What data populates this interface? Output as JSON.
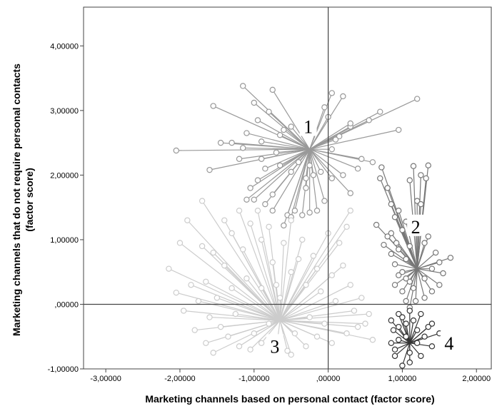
{
  "chart_data": {
    "type": "scatter",
    "title": "",
    "xlabel": "Marketing channels based on personal contact (factor score)",
    "ylabel_line1": "Marketing channels that do not require personal contacts",
    "ylabel_line2": "(factor score)",
    "xlim": [
      -3.3,
      2.2
    ],
    "ylim": [
      -1.0,
      4.6
    ],
    "x_ticks": [
      {
        "value": -3,
        "label": "-3,00000"
      },
      {
        "value": -2,
        "label": "-2,00000"
      },
      {
        "value": -1,
        "label": "-1,00000"
      },
      {
        "value": 0,
        "label": ",00000"
      },
      {
        "value": 1,
        "label": "1,00000"
      },
      {
        "value": 2,
        "label": "2,00000"
      }
    ],
    "y_ticks": [
      {
        "value": -1,
        "label": "-1,00000"
      },
      {
        "value": 0,
        "label": ",00000"
      },
      {
        "value": 1,
        "label": "1,00000"
      },
      {
        "value": 2,
        "label": "2,00000"
      },
      {
        "value": 3,
        "label": "3,00000"
      },
      {
        "value": 4,
        "label": "4,00000"
      }
    ],
    "reference_lines": {
      "x": 0,
      "y": 0
    },
    "grid": false,
    "series": [
      {
        "cluster": "1",
        "color": "#999999",
        "centroid": [
          -0.25,
          2.4
        ],
        "points": [
          [
            -1.15,
            3.38
          ],
          [
            -0.75,
            3.32
          ],
          [
            -1.55,
            3.07
          ],
          [
            -1.0,
            3.12
          ],
          [
            -0.8,
            2.98
          ],
          [
            -0.95,
            2.85
          ],
          [
            -0.6,
            2.7
          ],
          [
            -1.1,
            2.65
          ],
          [
            -1.45,
            2.5
          ],
          [
            -2.05,
            2.38
          ],
          [
            -1.6,
            2.08
          ],
          [
            -1.2,
            2.25
          ],
          [
            -0.9,
            2.52
          ],
          [
            -0.7,
            2.35
          ],
          [
            -0.85,
            2.1
          ],
          [
            -0.95,
            1.92
          ],
          [
            -1.05,
            1.8
          ],
          [
            -1.1,
            1.62
          ],
          [
            -1.0,
            1.62
          ],
          [
            -0.75,
            1.7
          ],
          [
            -0.85,
            1.55
          ],
          [
            -0.75,
            1.45
          ],
          [
            -0.55,
            1.38
          ],
          [
            -0.6,
            1.22
          ],
          [
            -0.5,
            1.35
          ],
          [
            -0.45,
            1.45
          ],
          [
            -0.35,
            1.38
          ],
          [
            -0.25,
            1.42
          ],
          [
            -0.15,
            1.45
          ],
          [
            -0.05,
            1.6
          ],
          [
            -0.3,
            1.8
          ],
          [
            -0.1,
            2.05
          ],
          [
            0.05,
            1.95
          ],
          [
            0.3,
            1.72
          ],
          [
            0.2,
            2.0
          ],
          [
            0.4,
            2.1
          ],
          [
            0.6,
            2.2
          ],
          [
            0.05,
            2.4
          ],
          [
            0.15,
            2.6
          ],
          [
            0.3,
            2.75
          ],
          [
            0.55,
            2.85
          ],
          [
            0.7,
            2.98
          ],
          [
            0.95,
            2.7
          ],
          [
            1.2,
            3.18
          ],
          [
            0.2,
            3.22
          ],
          [
            0.05,
            3.27
          ],
          [
            -0.05,
            3.05
          ],
          [
            0.0,
            2.9
          ],
          [
            0.3,
            2.8
          ],
          [
            -0.5,
            2.75
          ],
          [
            -0.65,
            2.62
          ],
          [
            -0.5,
            2.05
          ],
          [
            -0.4,
            2.2
          ],
          [
            -0.3,
            1.95
          ],
          [
            -0.25,
            2.15
          ],
          [
            -1.3,
            2.5
          ],
          [
            -1.15,
            2.42
          ],
          [
            -0.9,
            2.25
          ],
          [
            -0.65,
            2.15
          ],
          [
            0.45,
            2.25
          ],
          [
            0.1,
            2.55
          ],
          [
            -0.2,
            2.0
          ]
        ]
      },
      {
        "cluster": "2",
        "color": "#777777",
        "centroid": [
          1.2,
          0.55
        ],
        "points": [
          [
            0.72,
            2.12
          ],
          [
            0.7,
            1.95
          ],
          [
            0.8,
            1.8
          ],
          [
            0.85,
            1.55
          ],
          [
            0.9,
            1.35
          ],
          [
            0.95,
            1.45
          ],
          [
            1.0,
            1.15
          ],
          [
            1.05,
            1.28
          ],
          [
            1.15,
            2.14
          ],
          [
            1.1,
            1.92
          ],
          [
            1.25,
            2.0
          ],
          [
            1.35,
            2.15
          ],
          [
            1.32,
            1.95
          ],
          [
            1.2,
            1.6
          ],
          [
            1.25,
            1.55
          ],
          [
            0.65,
            1.23
          ],
          [
            0.85,
            1.1
          ],
          [
            0.75,
            0.92
          ],
          [
            0.85,
            0.78
          ],
          [
            0.9,
            0.62
          ],
          [
            0.95,
            0.45
          ],
          [
            0.9,
            0.3
          ],
          [
            1.0,
            0.2
          ],
          [
            1.05,
            0.05
          ],
          [
            1.1,
            -0.05
          ],
          [
            1.18,
            0.05
          ],
          [
            1.3,
            0.1
          ],
          [
            1.4,
            0.2
          ],
          [
            1.5,
            0.3
          ],
          [
            1.55,
            0.48
          ],
          [
            1.65,
            0.72
          ],
          [
            1.45,
            0.8
          ],
          [
            1.3,
            0.95
          ],
          [
            1.35,
            1.05
          ],
          [
            1.25,
            1.1
          ],
          [
            1.1,
            0.9
          ],
          [
            1.05,
            0.7
          ],
          [
            0.95,
            0.85
          ],
          [
            1.0,
            0.5
          ],
          [
            1.1,
            0.35
          ],
          [
            1.4,
            0.55
          ],
          [
            1.5,
            0.65
          ],
          [
            1.3,
            0.4
          ],
          [
            1.15,
            0.25
          ],
          [
            1.05,
            0.4
          ],
          [
            0.92,
            0.95
          ],
          [
            0.8,
            1.05
          ]
        ]
      },
      {
        "cluster": "3",
        "color": "#cccccc",
        "centroid": [
          -0.65,
          -0.25
        ],
        "points": [
          [
            -1.7,
            1.6
          ],
          [
            -1.9,
            1.3
          ],
          [
            -2.0,
            0.95
          ],
          [
            -2.15,
            0.55
          ],
          [
            -2.05,
            0.18
          ],
          [
            -1.95,
            -0.1
          ],
          [
            -1.8,
            -0.4
          ],
          [
            -1.65,
            -0.6
          ],
          [
            -1.55,
            -0.75
          ],
          [
            -1.35,
            -0.5
          ],
          [
            -1.2,
            -0.65
          ],
          [
            -1.05,
            -0.7
          ],
          [
            -0.9,
            -0.6
          ],
          [
            -0.7,
            -0.7
          ],
          [
            -0.5,
            -0.78
          ],
          [
            -0.3,
            -0.65
          ],
          [
            -0.15,
            -0.5
          ],
          [
            0.05,
            -0.6
          ],
          [
            0.25,
            -0.45
          ],
          [
            0.4,
            -0.35
          ],
          [
            0.55,
            -0.15
          ],
          [
            0.45,
            0.1
          ],
          [
            0.3,
            0.3
          ],
          [
            0.2,
            0.6
          ],
          [
            0.15,
            0.95
          ],
          [
            0.25,
            1.2
          ],
          [
            0.3,
            1.45
          ],
          [
            0.0,
            1.1
          ],
          [
            -0.2,
            0.75
          ],
          [
            -0.35,
            1.0
          ],
          [
            -0.5,
            1.3
          ],
          [
            -0.6,
            0.95
          ],
          [
            -0.75,
            0.65
          ],
          [
            -0.9,
            1.0
          ],
          [
            -1.05,
            1.25
          ],
          [
            -1.15,
            0.85
          ],
          [
            -1.3,
            1.1
          ],
          [
            -1.4,
            0.6
          ],
          [
            -1.55,
            0.8
          ],
          [
            -1.65,
            0.35
          ],
          [
            -1.5,
            0.1
          ],
          [
            -1.3,
            0.25
          ],
          [
            -1.1,
            0.4
          ],
          [
            -0.9,
            0.25
          ],
          [
            -0.7,
            0.3
          ],
          [
            -0.5,
            0.5
          ],
          [
            -0.3,
            0.3
          ],
          [
            -0.1,
            0.2
          ],
          [
            0.1,
            0.05
          ],
          [
            0.35,
            -0.1
          ],
          [
            0.5,
            -0.3
          ],
          [
            -0.05,
            -0.3
          ],
          [
            -0.25,
            -0.2
          ],
          [
            -0.45,
            -0.45
          ],
          [
            -1.6,
            -0.2
          ],
          [
            -1.75,
            0.05
          ],
          [
            -1.85,
            0.3
          ],
          [
            -1.45,
            -0.35
          ],
          [
            -1.25,
            -0.15
          ],
          [
            -1.0,
            -0.45
          ],
          [
            -0.8,
            -0.3
          ],
          [
            -0.65,
            0.1
          ],
          [
            -1.2,
            1.45
          ],
          [
            -0.95,
            1.45
          ],
          [
            -0.8,
            1.2
          ],
          [
            -0.4,
            0.7
          ],
          [
            -0.15,
            0.55
          ],
          [
            0.05,
            0.45
          ],
          [
            -1.4,
            1.3
          ],
          [
            -1.7,
            0.9
          ],
          [
            -0.55,
            -0.72
          ],
          [
            0.6,
            -0.55
          ]
        ]
      },
      {
        "cluster": "4",
        "color": "#333333",
        "centroid": [
          1.1,
          -0.6
        ],
        "points": [
          [
            0.95,
            -0.15
          ],
          [
            1.0,
            -0.2
          ],
          [
            1.1,
            -0.1
          ],
          [
            1.25,
            -0.15
          ],
          [
            1.4,
            -0.3
          ],
          [
            1.5,
            -0.45
          ],
          [
            1.4,
            -0.65
          ],
          [
            1.25,
            -0.8
          ],
          [
            1.1,
            -0.75
          ],
          [
            1.0,
            -0.95
          ],
          [
            0.9,
            -0.8
          ],
          [
            0.85,
            -0.6
          ],
          [
            0.88,
            -0.4
          ],
          [
            0.95,
            -0.35
          ],
          [
            1.05,
            -0.3
          ],
          [
            1.2,
            -0.4
          ],
          [
            1.3,
            -0.5
          ],
          [
            1.2,
            -0.6
          ],
          [
            1.05,
            -0.5
          ],
          [
            0.95,
            -0.55
          ],
          [
            0.85,
            -0.25
          ],
          [
            1.15,
            -0.25
          ],
          [
            1.35,
            -0.35
          ],
          [
            1.1,
            -0.9
          ],
          [
            0.9,
            -0.7
          ]
        ]
      }
    ],
    "annotations": [
      {
        "text": "1",
        "x": -0.27,
        "y": 2.75
      },
      {
        "text": "2",
        "x": 1.18,
        "y": 1.2
      },
      {
        "text": "3",
        "x": -0.72,
        "y": -0.65
      },
      {
        "text": "4",
        "x": 1.63,
        "y": -0.6
      }
    ]
  }
}
